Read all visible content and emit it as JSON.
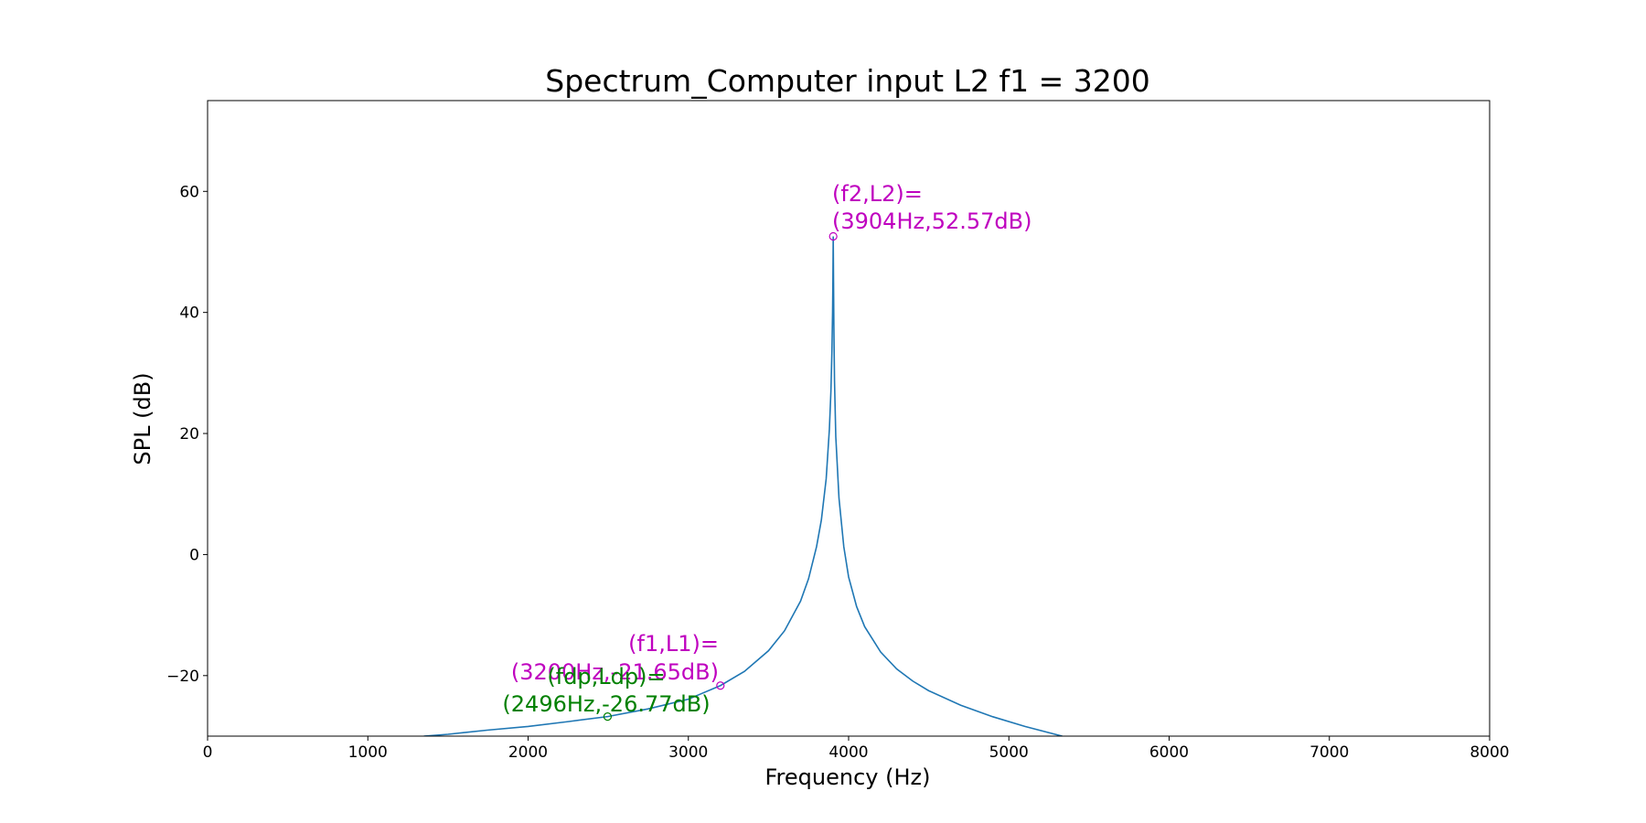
{
  "chart_data": {
    "type": "line",
    "title": "Spectrum_Computer input L2 f1 = 3200",
    "xlabel": "Frequency (Hz)",
    "ylabel": "SPL (dB)",
    "xlim": [
      0,
      8000
    ],
    "ylim": [
      -30,
      75
    ],
    "xticks": [
      0,
      1000,
      2000,
      3000,
      4000,
      5000,
      6000,
      7000,
      8000
    ],
    "xtick_labels": [
      "0",
      "1000",
      "2000",
      "3000",
      "4000",
      "5000",
      "6000",
      "7000",
      "8000"
    ],
    "yticks": [
      -20,
      0,
      20,
      40,
      60
    ],
    "ytick_labels": [
      "−20",
      "0",
      "20",
      "40",
      "60"
    ],
    "grid": false,
    "line_color": "#1f77b4",
    "series": [
      {
        "x": [
          1350,
          1500,
          1750,
          2000,
          2250,
          2496,
          2750,
          3000,
          3200,
          3350,
          3500,
          3600,
          3700,
          3750,
          3800,
          3830,
          3860,
          3880,
          3890,
          3896,
          3900,
          3902,
          3904,
          3906,
          3908,
          3912,
          3920,
          3940,
          3970,
          4000,
          4050,
          4100,
          4200,
          4300,
          4400,
          4500,
          4700,
          4900,
          5100,
          5333
        ],
        "y": [
          -30.0,
          -29.7,
          -29.0,
          -28.4,
          -27.6,
          -26.77,
          -25.5,
          -23.9,
          -21.65,
          -19.3,
          -15.9,
          -12.6,
          -7.7,
          -4.0,
          1.3,
          5.7,
          12.5,
          20.7,
          27.2,
          33.8,
          40.0,
          45.0,
          52.57,
          45.0,
          38.0,
          28.7,
          19.5,
          9.3,
          1.3,
          -3.7,
          -8.6,
          -11.9,
          -16.1,
          -18.9,
          -20.9,
          -22.5,
          -24.9,
          -26.8,
          -28.4,
          -30.0
        ]
      }
    ],
    "markers": [
      {
        "x": 3904,
        "y": 52.57,
        "color": "#bf00bf"
      },
      {
        "x": 3200,
        "y": -21.65,
        "color": "#bf00bf"
      },
      {
        "x": 2496,
        "y": -26.77,
        "color": "#008000"
      }
    ],
    "annotations": [
      {
        "line1": "(f2,L2)=",
        "line2": "(3904Hz,52.57dB)",
        "color": "#bf00bf"
      },
      {
        "line1": "(f1,L1)=",
        "line2": "(3200Hz,-21.65dB)",
        "color": "#bf00bf"
      },
      {
        "line1": "(fdp,Ldp)=",
        "line2": "(2496Hz,-26.77dB)",
        "color": "#008000"
      }
    ]
  }
}
